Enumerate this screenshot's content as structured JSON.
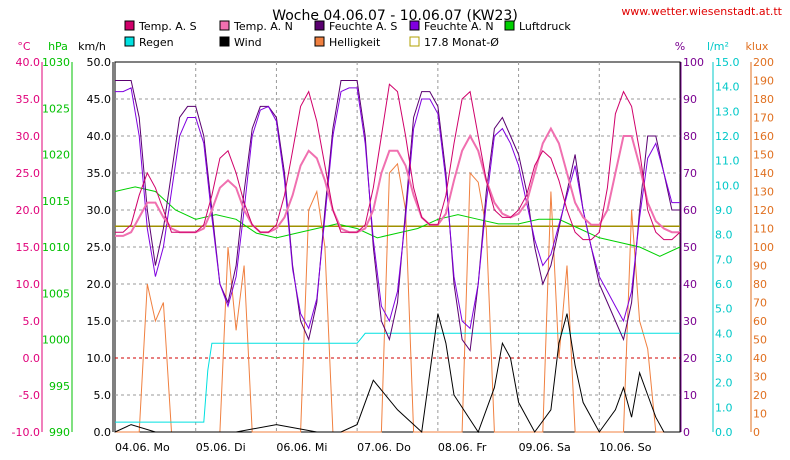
{
  "header": {
    "title": "Woche 04.06.07 - 10.06.07 (KW23)",
    "url": "www.wetter.wiesenstadt.at.tt"
  },
  "chart_data": {
    "type": "line",
    "title": "Woche 04.06.07 - 10.06.07 (KW23)",
    "axes": [
      {
        "id": "temp",
        "unit": "°C",
        "color": "#e0007a",
        "min": -10,
        "max": 40,
        "ticks": [
          "40.0",
          "35.0",
          "30.0",
          "25.0",
          "20.0",
          "15.0",
          "10.0",
          "5.0",
          "0.0",
          "-5.0",
          "-10.0"
        ]
      },
      {
        "id": "press",
        "unit": "hPa",
        "color": "#00c000",
        "min": 990,
        "max": 1030,
        "ticks": [
          "1030",
          "1025",
          "1020",
          "1015",
          "1010",
          "1005",
          "1000",
          "995",
          "990"
        ]
      },
      {
        "id": "wind",
        "unit": "km/h",
        "color": "#000000",
        "min": 0,
        "max": 50,
        "ticks": [
          "50.0",
          "45.0",
          "40.0",
          "35.0",
          "30.0",
          "25.0",
          "20.0",
          "15.0",
          "10.0",
          "5.0",
          "0.0"
        ]
      },
      {
        "id": "hum",
        "unit": "%",
        "color": "#7a0090",
        "min": 0,
        "max": 100,
        "ticks": [
          "100",
          "90",
          "80",
          "70",
          "60",
          "50",
          "40",
          "30",
          "20",
          "10",
          "0"
        ]
      },
      {
        "id": "rain",
        "unit": "l/m²",
        "color": "#00c8c8",
        "min": 0,
        "max": 15,
        "ticks": [
          "15.0",
          "14.0",
          "13.0",
          "12.0",
          "11.0",
          "10.0",
          "9.0",
          "8.0",
          "7.0",
          "6.0",
          "5.0",
          "4.0",
          "3.0",
          "2.0",
          "1.0",
          "0.0"
        ]
      },
      {
        "id": "lux",
        "unit": "klux",
        "color": "#e07020",
        "min": 0,
        "max": 200,
        "ticks": [
          "200",
          "190",
          "180",
          "170",
          "160",
          "150",
          "140",
          "130",
          "120",
          "110",
          "100",
          "90",
          "80",
          "70",
          "60",
          "50",
          "40",
          "30",
          "20",
          "10",
          "0"
        ]
      }
    ],
    "x_labels": [
      "04.06. Mo",
      "05.06. Di",
      "06.06. Mi",
      "07.06. Do",
      "08.06. Fr",
      "09.06. Sa",
      "10.06. So"
    ],
    "legend": [
      {
        "label": "Temp. A. S",
        "color": "#d0006a"
      },
      {
        "label": "Temp. A. N",
        "color": "#f070b0"
      },
      {
        "label": "Feuchte A. S",
        "color": "#5a0070"
      },
      {
        "label": "Feuchte A. N",
        "color": "#8000e0"
      },
      {
        "label": "Luftdruck",
        "color": "#00d000"
      },
      {
        "label": "Regen",
        "color": "#00e0e0"
      },
      {
        "label": "Wind",
        "color": "#000000"
      },
      {
        "label": "Helligkeit",
        "color": "#f08040"
      },
      {
        "label": "17.8 Monat-Ø",
        "color": "#b0a000",
        "hollow": true
      }
    ],
    "monthly_avg_temp": 17.8,
    "series": [
      {
        "name": "Temp. A. S",
        "axis": "temp",
        "color": "#d0006a",
        "x": [
          0,
          0.1,
          0.2,
          0.3,
          0.4,
          0.5,
          0.6,
          0.7,
          0.8,
          0.9,
          1,
          1.1,
          1.2,
          1.3,
          1.4,
          1.5,
          1.6,
          1.7,
          1.8,
          1.9,
          2,
          2.1,
          2.2,
          2.3,
          2.4,
          2.5,
          2.6,
          2.7,
          2.8,
          2.9,
          3,
          3.1,
          3.2,
          3.3,
          3.4,
          3.5,
          3.6,
          3.7,
          3.8,
          3.9,
          4,
          4.1,
          4.2,
          4.3,
          4.4,
          4.5,
          4.6,
          4.7,
          4.8,
          4.9,
          5,
          5.1,
          5.2,
          5.3,
          5.4,
          5.5,
          5.6,
          5.7,
          5.8,
          5.9,
          6,
          6.1,
          6.2,
          6.3,
          6.4,
          6.5,
          6.6,
          6.7,
          6.8,
          6.9,
          7
        ],
        "values": [
          17,
          17,
          18,
          22,
          25,
          23,
          20,
          17,
          17,
          17,
          17,
          18,
          22,
          27,
          28,
          25,
          21,
          18,
          17,
          17,
          18,
          22,
          28,
          34,
          36,
          32,
          26,
          20,
          17,
          17,
          17,
          18,
          23,
          30,
          37,
          36,
          30,
          23,
          19,
          18,
          18,
          22,
          29,
          35,
          36,
          30,
          24,
          20,
          19,
          19,
          20,
          22,
          26,
          28,
          27,
          24,
          20,
          17,
          16,
          16,
          17,
          23,
          33,
          36,
          34,
          28,
          20,
          17,
          16,
          16,
          17
        ]
      },
      {
        "name": "Temp. A. N",
        "axis": "temp",
        "color": "#f070b0",
        "x": [
          0,
          0.1,
          0.2,
          0.3,
          0.4,
          0.5,
          0.6,
          0.7,
          0.8,
          0.9,
          1,
          1.1,
          1.2,
          1.3,
          1.4,
          1.5,
          1.6,
          1.7,
          1.8,
          1.9,
          2,
          2.1,
          2.2,
          2.3,
          2.4,
          2.5,
          2.6,
          2.7,
          2.8,
          2.9,
          3,
          3.1,
          3.2,
          3.3,
          3.4,
          3.5,
          3.6,
          3.7,
          3.8,
          3.9,
          4,
          4.1,
          4.2,
          4.3,
          4.4,
          4.5,
          4.6,
          4.7,
          4.8,
          4.9,
          5,
          5.1,
          5.2,
          5.3,
          5.4,
          5.5,
          5.6,
          5.7,
          5.8,
          5.9,
          6,
          6.1,
          6.2,
          6.3,
          6.4,
          6.5,
          6.6,
          6.7,
          6.8,
          6.9,
          7
        ],
        "values": [
          16.5,
          16.5,
          17,
          19,
          21,
          21,
          19,
          17.5,
          17,
          17,
          17,
          17.5,
          20,
          23,
          24,
          23,
          20,
          18,
          17,
          17,
          17.5,
          19,
          22,
          26,
          28,
          27,
          24,
          20,
          17.5,
          17,
          17,
          17.5,
          20,
          25,
          28,
          28,
          26,
          22,
          19,
          18,
          18,
          19.5,
          24,
          28,
          30,
          28,
          24,
          21,
          19.5,
          19,
          19.5,
          21,
          25,
          29,
          31,
          29,
          25,
          21,
          19,
          18,
          18,
          20,
          25,
          30,
          30,
          26,
          21,
          18.5,
          17.5,
          17,
          17
        ]
      },
      {
        "name": "Feuchte A. S",
        "axis": "hum",
        "color": "#5a0070",
        "x": [
          0,
          0.1,
          0.2,
          0.3,
          0.4,
          0.5,
          0.6,
          0.7,
          0.8,
          0.9,
          1,
          1.1,
          1.2,
          1.3,
          1.4,
          1.5,
          1.6,
          1.7,
          1.8,
          1.9,
          2,
          2.1,
          2.2,
          2.3,
          2.4,
          2.5,
          2.6,
          2.7,
          2.8,
          2.9,
          3,
          3.1,
          3.2,
          3.3,
          3.4,
          3.5,
          3.6,
          3.7,
          3.8,
          3.9,
          4,
          4.1,
          4.2,
          4.3,
          4.4,
          4.5,
          4.6,
          4.7,
          4.8,
          4.9,
          5,
          5.1,
          5.2,
          5.3,
          5.4,
          5.5,
          5.6,
          5.7,
          5.8,
          5.9,
          6,
          6.1,
          6.2,
          6.3,
          6.4,
          6.5,
          6.6,
          6.7,
          6.8,
          6.9,
          7
        ],
        "values": [
          95,
          95,
          95,
          85,
          60,
          45,
          55,
          70,
          85,
          88,
          88,
          80,
          60,
          40,
          35,
          45,
          65,
          82,
          88,
          88,
          85,
          70,
          45,
          30,
          25,
          35,
          60,
          82,
          95,
          95,
          95,
          80,
          50,
          30,
          25,
          35,
          60,
          85,
          92,
          92,
          88,
          70,
          40,
          25,
          22,
          40,
          65,
          82,
          85,
          80,
          75,
          65,
          50,
          40,
          45,
          55,
          65,
          75,
          60,
          50,
          40,
          35,
          30,
          25,
          35,
          60,
          80,
          80,
          70,
          60,
          60
        ]
      },
      {
        "name": "Feuchte A. N",
        "axis": "hum",
        "color": "#8000e0",
        "x": [
          0,
          0.1,
          0.2,
          0.3,
          0.4,
          0.5,
          0.6,
          0.7,
          0.8,
          0.9,
          1,
          1.1,
          1.2,
          1.3,
          1.4,
          1.5,
          1.6,
          1.7,
          1.8,
          1.9,
          2,
          2.1,
          2.2,
          2.3,
          2.4,
          2.5,
          2.6,
          2.7,
          2.8,
          2.9,
          3,
          3.1,
          3.2,
          3.3,
          3.4,
          3.5,
          3.6,
          3.7,
          3.8,
          3.9,
          4,
          4.1,
          4.2,
          4.3,
          4.4,
          4.5,
          4.6,
          4.7,
          4.8,
          4.9,
          5,
          5.1,
          5.2,
          5.3,
          5.4,
          5.5,
          5.6,
          5.7,
          5.8,
          5.9,
          6,
          6.1,
          6.2,
          6.3,
          6.4,
          6.5,
          6.6,
          6.7,
          6.8,
          6.9,
          7
        ],
        "values": [
          92,
          92,
          93,
          80,
          55,
          42,
          50,
          65,
          80,
          85,
          85,
          78,
          58,
          40,
          34,
          42,
          60,
          80,
          87,
          88,
          84,
          68,
          44,
          32,
          28,
          36,
          58,
          80,
          92,
          93,
          93,
          78,
          52,
          34,
          30,
          38,
          58,
          82,
          90,
          90,
          86,
          68,
          42,
          30,
          28,
          40,
          62,
          80,
          82,
          78,
          72,
          62,
          52,
          45,
          48,
          56,
          64,
          72,
          60,
          50,
          42,
          38,
          34,
          30,
          38,
          58,
          74,
          78,
          70,
          62,
          62
        ]
      },
      {
        "name": "Luftdruck",
        "axis": "press",
        "color": "#00d000",
        "x": [
          0,
          0.25,
          0.5,
          0.75,
          1,
          1.25,
          1.5,
          1.75,
          2,
          2.25,
          2.5,
          2.75,
          3,
          3.25,
          3.5,
          3.75,
          4,
          4.25,
          4.5,
          4.75,
          5,
          5.25,
          5.5,
          5.75,
          6,
          6.25,
          6.5,
          6.75,
          7
        ],
        "values": [
          1016,
          1016.5,
          1016,
          1014,
          1013,
          1013.5,
          1013,
          1011.5,
          1011,
          1011.5,
          1012,
          1012.5,
          1012,
          1011,
          1011.5,
          1012,
          1013,
          1013.5,
          1013,
          1012.5,
          1012.5,
          1013,
          1013,
          1012,
          1011,
          1010.5,
          1010,
          1009,
          1010
        ]
      },
      {
        "name": "Regen",
        "axis": "rain",
        "color": "#00e0e0",
        "x": [
          0,
          1.1,
          1.15,
          1.2,
          3,
          3.05,
          3.1,
          7
        ],
        "values": [
          0.4,
          0.4,
          2.5,
          3.6,
          3.6,
          3.8,
          4.0,
          4.0
        ]
      },
      {
        "name": "Wind",
        "axis": "wind",
        "color": "#000000",
        "x": [
          0,
          0.2,
          0.5,
          0.8,
          1,
          1.5,
          2,
          2.5,
          2.8,
          3,
          3.2,
          3.5,
          3.8,
          3.9,
          4,
          4.1,
          4.2,
          4.5,
          4.7,
          4.8,
          4.9,
          5,
          5.2,
          5.4,
          5.5,
          5.6,
          5.7,
          5.8,
          6,
          6.2,
          6.3,
          6.4,
          6.5,
          6.6,
          6.7,
          6.8,
          7
        ],
        "values": [
          0,
          1,
          0,
          0,
          0,
          0,
          1,
          0,
          0,
          1,
          7,
          3,
          0,
          8,
          16,
          12,
          5,
          0,
          6,
          12,
          10,
          4,
          0,
          3,
          12,
          16,
          9,
          4,
          0,
          3,
          6,
          2,
          8,
          5,
          2,
          0,
          0
        ]
      },
      {
        "name": "Helligkeit",
        "axis": "lux",
        "color": "#f08040",
        "x": [
          0,
          0.3,
          0.4,
          0.5,
          0.6,
          0.7,
          1,
          1.3,
          1.4,
          1.5,
          1.6,
          1.7,
          2,
          2.3,
          2.4,
          2.5,
          2.6,
          2.7,
          3,
          3.3,
          3.4,
          3.5,
          3.6,
          3.7,
          4,
          4.3,
          4.4,
          4.5,
          4.6,
          4.7,
          5,
          5.3,
          5.4,
          5.5,
          5.6,
          5.7,
          6,
          6.3,
          6.4,
          6.5,
          6.6,
          6.7,
          7
        ],
        "values": [
          0,
          0,
          80,
          60,
          70,
          0,
          0,
          0,
          100,
          55,
          90,
          0,
          0,
          0,
          120,
          130,
          100,
          0,
          0,
          0,
          140,
          145,
          120,
          0,
          0,
          0,
          140,
          135,
          110,
          0,
          0,
          0,
          130,
          40,
          90,
          0,
          0,
          0,
          120,
          60,
          45,
          0,
          0
        ]
      }
    ]
  }
}
